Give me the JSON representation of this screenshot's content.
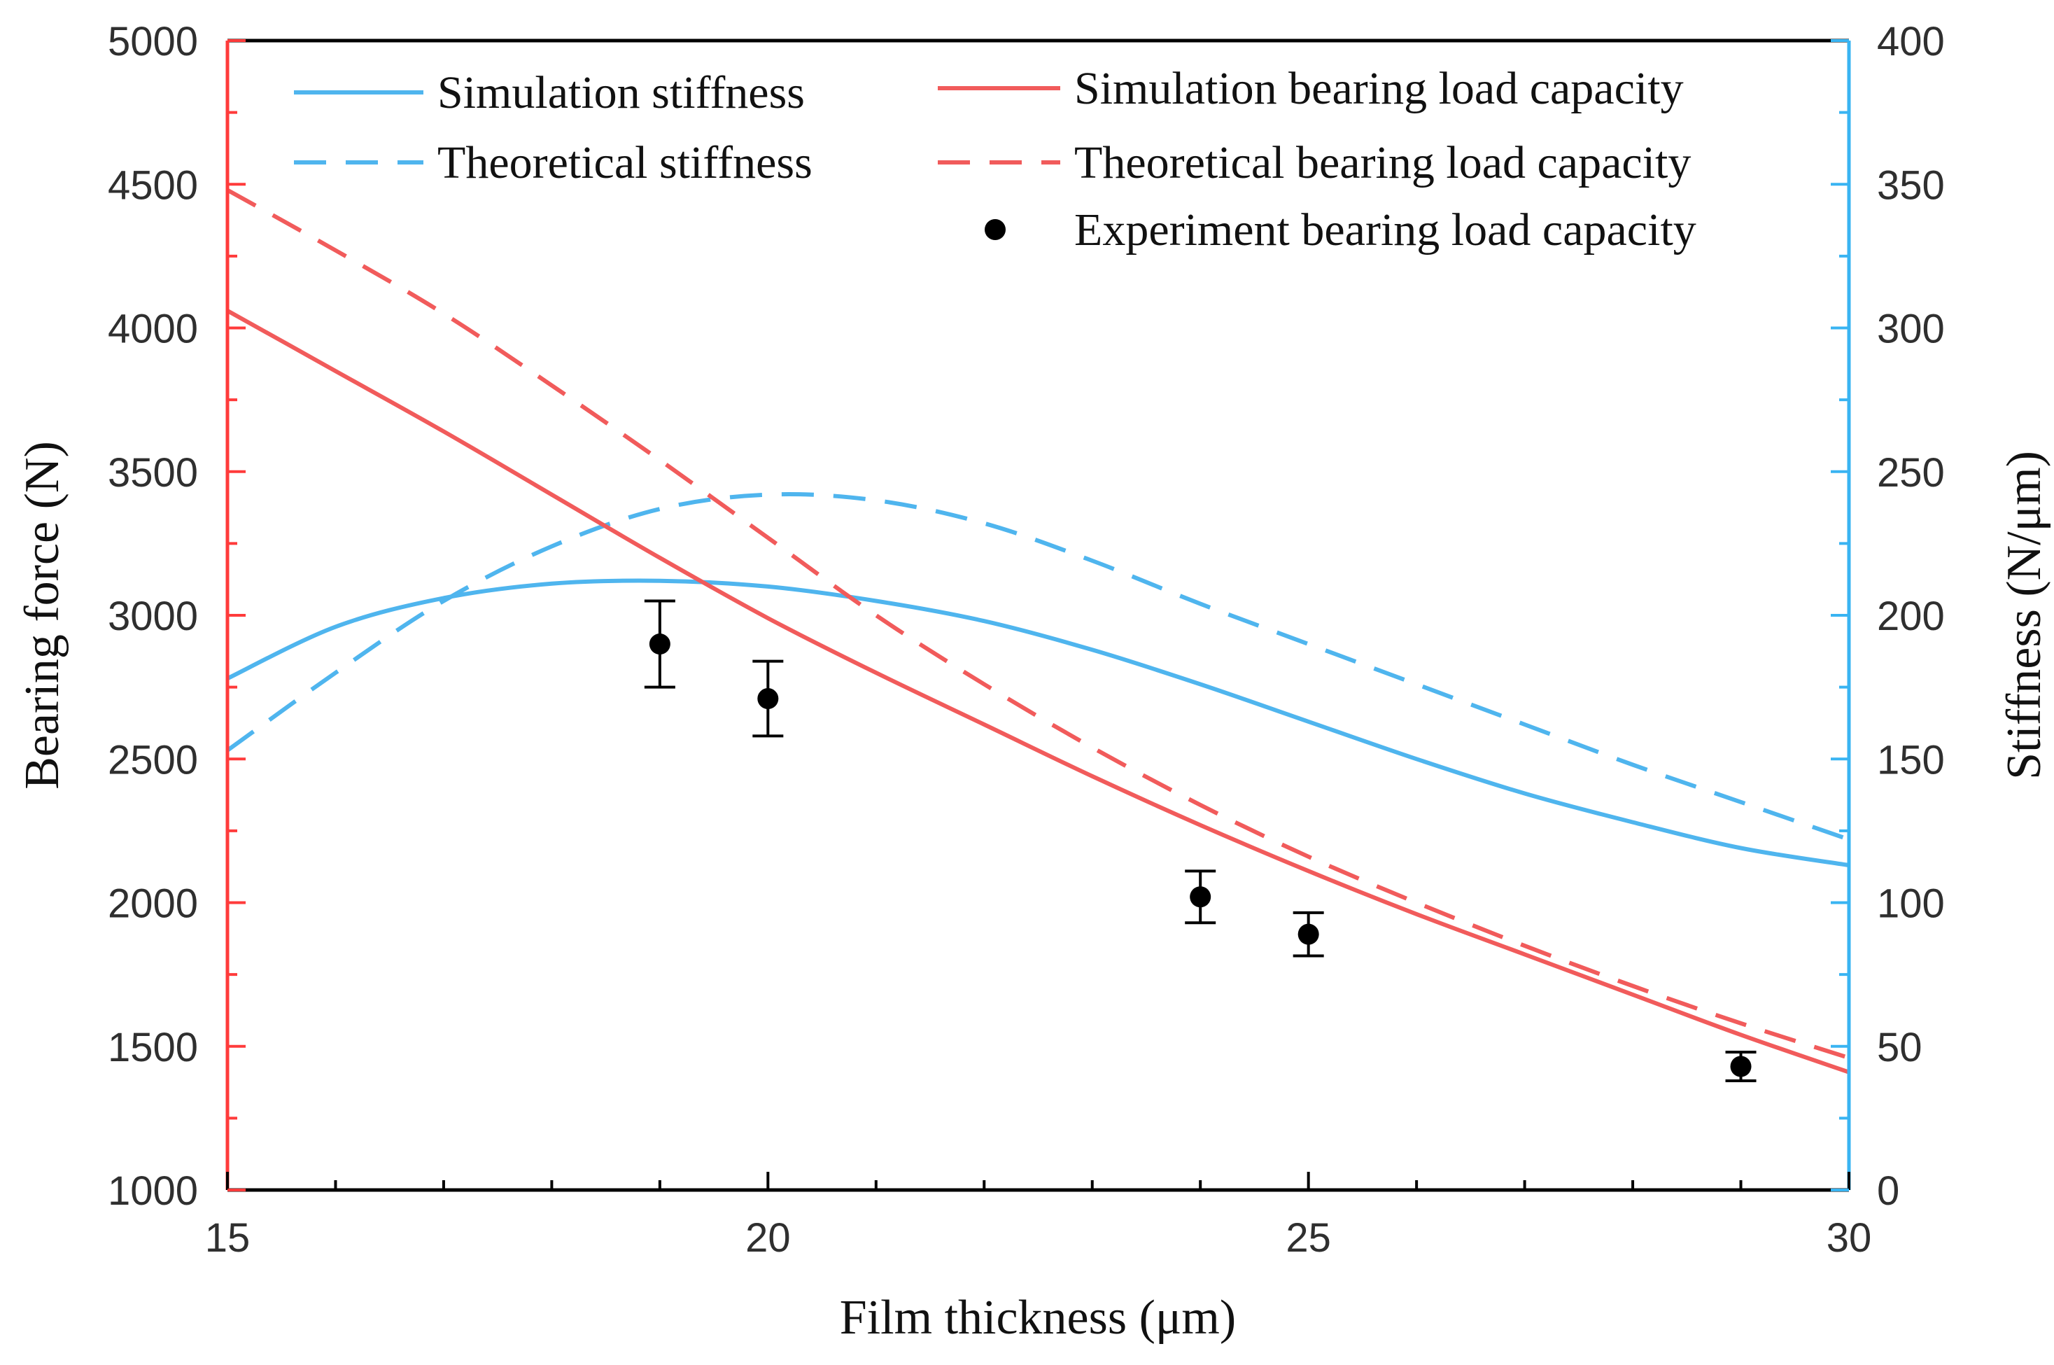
{
  "chart_data": {
    "type": "line",
    "x_axis": {
      "label": "Film thickness (μm)",
      "range": [
        15,
        30
      ],
      "ticks": [
        "15",
        "20",
        "25",
        "30"
      ],
      "tick_values": [
        15,
        20,
        25,
        30
      ],
      "minor_tick_values": [
        16,
        17,
        18,
        19,
        21,
        22,
        23,
        24,
        26,
        27,
        28,
        29
      ],
      "color": "#000000"
    },
    "y_axis_left": {
      "label": "Bearing force (N)",
      "range": [
        1000,
        5000
      ],
      "ticks": [
        "1000",
        "1500",
        "2000",
        "2500",
        "3000",
        "3500",
        "4000",
        "4500",
        "5000"
      ],
      "tick_values": [
        1000,
        1500,
        2000,
        2500,
        3000,
        3500,
        4000,
        4500,
        5000
      ],
      "color": "#ff3b3b"
    },
    "y_axis_right": {
      "label": "Stiffness (N/μm)",
      "range": [
        0,
        400
      ],
      "ticks": [
        "0",
        "50",
        "100",
        "150",
        "200",
        "250",
        "300",
        "350",
        "400"
      ],
      "tick_values": [
        0,
        50,
        100,
        150,
        200,
        250,
        300,
        350,
        400
      ],
      "color": "#39b4f2"
    },
    "series": [
      {
        "name": "Simulation stiffness",
        "axis": "right",
        "style": "solid",
        "color": "#4fb5ee",
        "x": [
          15,
          16,
          17,
          18,
          19,
          20,
          21,
          22,
          23,
          24,
          25,
          26,
          27,
          28,
          29,
          30
        ],
        "y": [
          178,
          196,
          206,
          211,
          212,
          210,
          205,
          198,
          188,
          176,
          163,
          150,
          138,
          128,
          119,
          113
        ]
      },
      {
        "name": "Theoretical stiffness",
        "axis": "right",
        "style": "dashed",
        "color": "#4fb5ee",
        "x": [
          15,
          16,
          17,
          18,
          19,
          20,
          21,
          22,
          23,
          24,
          25,
          26,
          27,
          28,
          29,
          30
        ],
        "y": [
          153,
          180,
          205,
          224,
          237,
          242,
          240,
          232,
          219,
          204,
          190,
          176,
          162,
          148,
          135,
          122
        ]
      },
      {
        "name": "Simulation bearing load capacity",
        "axis": "left",
        "style": "solid",
        "color": "#f15b5b",
        "x": [
          15,
          16,
          17,
          18,
          19,
          20,
          21,
          22,
          23,
          24,
          25,
          26,
          27,
          28,
          29,
          30
        ],
        "y": [
          4060,
          3850,
          3640,
          3420,
          3200,
          2990,
          2800,
          2620,
          2440,
          2270,
          2110,
          1960,
          1820,
          1680,
          1540,
          1410
        ]
      },
      {
        "name": "Theoretical bearing load capacity",
        "axis": "left",
        "style": "dashed",
        "color": "#f15b5b",
        "x": [
          15,
          16,
          17,
          18,
          19,
          20,
          21,
          22,
          23,
          24,
          25,
          26,
          27,
          28,
          29,
          30
        ],
        "y": [
          4480,
          4270,
          4050,
          3800,
          3540,
          3270,
          3000,
          2760,
          2540,
          2340,
          2160,
          2000,
          1850,
          1710,
          1580,
          1460
        ]
      },
      {
        "name": "Experiment bearing load capacity",
        "axis": "left",
        "style": "points",
        "color": "#000000",
        "x": [
          19,
          20,
          24,
          25,
          29
        ],
        "y": [
          2900,
          2710,
          2020,
          1890,
          1430
        ],
        "error": [
          150,
          130,
          90,
          75,
          50
        ]
      }
    ],
    "legend": {
      "placement": "top-right",
      "columns": [
        [
          "Simulation stiffness",
          "Theoretical stiffness"
        ],
        [
          "Simulation bearing load capacity",
          "Theoretical bearing load capacity",
          "Experiment bearing load capacity"
        ]
      ]
    }
  }
}
